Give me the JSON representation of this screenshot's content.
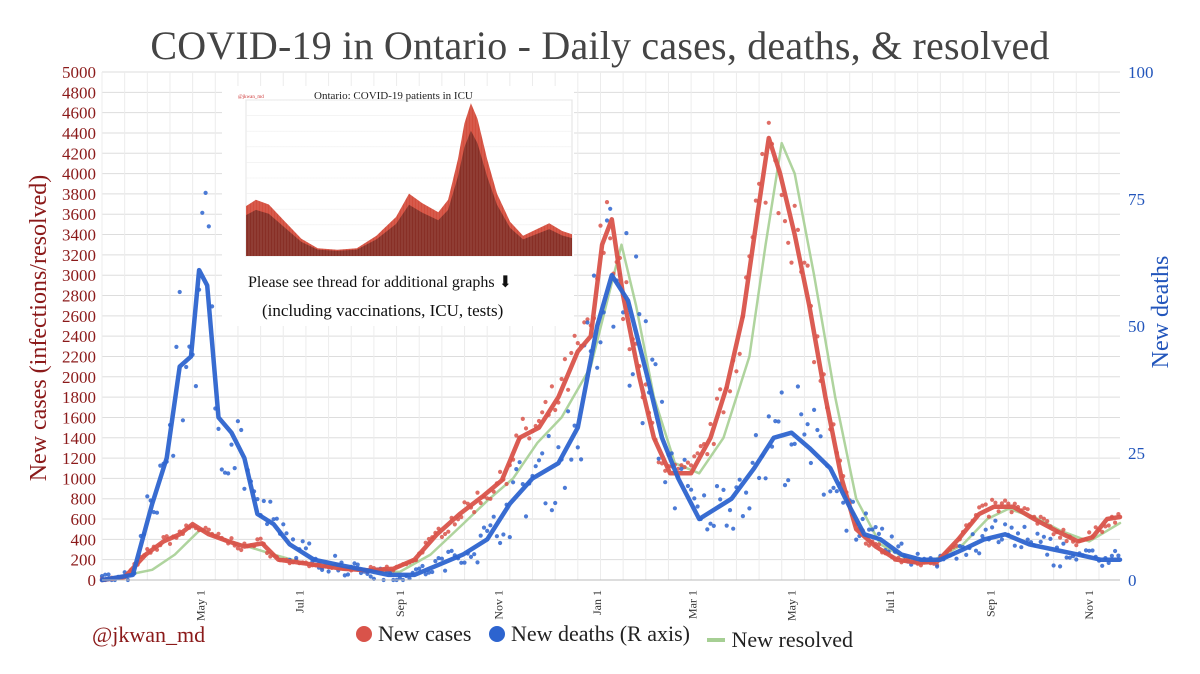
{
  "title": "COVID-19 in Ontario - Daily cases, deaths, & resolved",
  "handle": "@jkwan_md",
  "legend": {
    "cases": "New cases",
    "deaths": "New deaths (R axis)",
    "resolved": "New resolved"
  },
  "colors": {
    "cases": "#d9534a",
    "deaths": "#2d64cf",
    "resolved": "#a6cf94",
    "left_axis": "#8b1a1a",
    "right_axis": "#2255bb"
  },
  "inset": {
    "title": "Ontario: COVID-19 patients in ICU",
    "handle": "@jkwan_md",
    "note": "Please see thread for additional graphs ⬇",
    "note2": "(including vaccinations, ICU, tests)"
  },
  "chart_data": {
    "type": "line",
    "title": "COVID-19 in Ontario - Daily cases, deaths, & resolved",
    "ylabel_left": "New cases (infections/resolved)",
    "ylabel_right": "New deaths",
    "ylim_left": [
      0,
      5000
    ],
    "ylim_right": [
      0,
      100
    ],
    "yticks_left": [
      0,
      200,
      400,
      600,
      800,
      1000,
      1200,
      1400,
      1600,
      1800,
      2000,
      2200,
      2400,
      2600,
      2800,
      3000,
      3200,
      3400,
      3600,
      3800,
      4000,
      4200,
      4400,
      4600,
      4800,
      5000
    ],
    "yticks_right": [
      0,
      25,
      50,
      75,
      100
    ],
    "xlim": [
      "2020-03-01",
      "2021-11-20"
    ],
    "xticks": [
      {
        "date": "2020-05-01",
        "label": "May 1"
      },
      {
        "date": "2020-07-01",
        "label": "Jul 1"
      },
      {
        "date": "2020-09-01",
        "label": "Sep 1"
      },
      {
        "date": "2020-11-01",
        "label": "Nov 1"
      },
      {
        "date": "2021-01-01",
        "label": "Jan 1"
      },
      {
        "date": "2021-03-01",
        "label": "Mar 1"
      },
      {
        "date": "2021-05-01",
        "label": "May 1"
      },
      {
        "date": "2021-07-01",
        "label": "Jul 1"
      },
      {
        "date": "2021-09-01",
        "label": "Sep 1"
      },
      {
        "date": "2021-11-01",
        "label": "Nov 1"
      }
    ],
    "grid": true,
    "legend_position": "bottom",
    "series": [
      {
        "name": "New cases",
        "axis": "left",
        "style": "thick line with scattered daily dots",
        "points": [
          [
            "2020-03-01",
            0
          ],
          [
            "2020-03-15",
            30
          ],
          [
            "2020-03-28",
            250
          ],
          [
            "2020-04-08",
            380
          ],
          [
            "2020-04-18",
            450
          ],
          [
            "2020-04-26",
            550
          ],
          [
            "2020-05-06",
            450
          ],
          [
            "2020-05-18",
            380
          ],
          [
            "2020-05-28",
            330
          ],
          [
            "2020-06-08",
            360
          ],
          [
            "2020-06-18",
            200
          ],
          [
            "2020-07-01",
            170
          ],
          [
            "2020-07-15",
            140
          ],
          [
            "2020-07-28",
            110
          ],
          [
            "2020-08-12",
            95
          ],
          [
            "2020-08-28",
            110
          ],
          [
            "2020-09-10",
            200
          ],
          [
            "2020-09-24",
            450
          ],
          [
            "2020-10-08",
            650
          ],
          [
            "2020-10-22",
            820
          ],
          [
            "2020-11-03",
            980
          ],
          [
            "2020-11-14",
            1400
          ],
          [
            "2020-11-26",
            1500
          ],
          [
            "2020-12-08",
            1800
          ],
          [
            "2020-12-20",
            2250
          ],
          [
            "2020-12-28",
            2400
          ],
          [
            "2021-01-04",
            3300
          ],
          [
            "2021-01-10",
            3550
          ],
          [
            "2021-01-17",
            2800
          ],
          [
            "2021-01-27",
            2000
          ],
          [
            "2021-02-05",
            1400
          ],
          [
            "2021-02-15",
            1050
          ],
          [
            "2021-02-28",
            1050
          ],
          [
            "2021-03-12",
            1400
          ],
          [
            "2021-03-22",
            1900
          ],
          [
            "2021-04-01",
            2600
          ],
          [
            "2021-04-10",
            3600
          ],
          [
            "2021-04-17",
            4350
          ],
          [
            "2021-04-24",
            4000
          ],
          [
            "2021-05-03",
            3400
          ],
          [
            "2021-05-12",
            2700
          ],
          [
            "2021-05-22",
            1800
          ],
          [
            "2021-06-01",
            1000
          ],
          [
            "2021-06-10",
            500
          ],
          [
            "2021-06-22",
            330
          ],
          [
            "2021-07-05",
            200
          ],
          [
            "2021-07-18",
            170
          ],
          [
            "2021-07-30",
            180
          ],
          [
            "2021-08-12",
            400
          ],
          [
            "2021-08-25",
            650
          ],
          [
            "2021-09-03",
            720
          ],
          [
            "2021-09-15",
            720
          ],
          [
            "2021-09-28",
            600
          ],
          [
            "2021-10-12",
            480
          ],
          [
            "2021-10-25",
            380
          ],
          [
            "2021-11-03",
            420
          ],
          [
            "2021-11-12",
            600
          ],
          [
            "2021-11-20",
            620
          ]
        ]
      },
      {
        "name": "New deaths (R axis)",
        "axis": "right",
        "style": "thick line with scattered daily dots",
        "points": [
          [
            "2020-03-01",
            0
          ],
          [
            "2020-03-20",
            1
          ],
          [
            "2020-04-01",
            15
          ],
          [
            "2020-04-10",
            24
          ],
          [
            "2020-04-18",
            42
          ],
          [
            "2020-04-25",
            44
          ],
          [
            "2020-04-30",
            61
          ],
          [
            "2020-05-05",
            58
          ],
          [
            "2020-05-12",
            32
          ],
          [
            "2020-05-20",
            29
          ],
          [
            "2020-05-28",
            24
          ],
          [
            "2020-06-05",
            13
          ],
          [
            "2020-06-15",
            11
          ],
          [
            "2020-06-25",
            7
          ],
          [
            "2020-07-10",
            4
          ],
          [
            "2020-07-25",
            3
          ],
          [
            "2020-08-10",
            2
          ],
          [
            "2020-08-25",
            1
          ],
          [
            "2020-09-10",
            1
          ],
          [
            "2020-09-25",
            3
          ],
          [
            "2020-10-10",
            5
          ],
          [
            "2020-10-25",
            8
          ],
          [
            "2020-11-08",
            15
          ],
          [
            "2020-11-22",
            20
          ],
          [
            "2020-12-08",
            23
          ],
          [
            "2020-12-20",
            30
          ],
          [
            "2021-01-01",
            50
          ],
          [
            "2021-01-10",
            60
          ],
          [
            "2021-01-20",
            55
          ],
          [
            "2021-02-01",
            40
          ],
          [
            "2021-02-10",
            28
          ],
          [
            "2021-02-20",
            20
          ],
          [
            "2021-03-05",
            12
          ],
          [
            "2021-03-15",
            14
          ],
          [
            "2021-03-25",
            16
          ],
          [
            "2021-04-08",
            22
          ],
          [
            "2021-04-20",
            28
          ],
          [
            "2021-05-01",
            29
          ],
          [
            "2021-05-12",
            26
          ],
          [
            "2021-05-25",
            22
          ],
          [
            "2021-06-05",
            15
          ],
          [
            "2021-06-15",
            9
          ],
          [
            "2021-06-25",
            8
          ],
          [
            "2021-07-08",
            5
          ],
          [
            "2021-07-20",
            4
          ],
          [
            "2021-08-01",
            4
          ],
          [
            "2021-08-15",
            6
          ],
          [
            "2021-08-28",
            8
          ],
          [
            "2021-09-10",
            9
          ],
          [
            "2021-09-25",
            7
          ],
          [
            "2021-10-10",
            6
          ],
          [
            "2021-10-25",
            5
          ],
          [
            "2021-11-08",
            4
          ],
          [
            "2021-11-20",
            4
          ]
        ]
      },
      {
        "name": "New resolved",
        "axis": "left",
        "style": "thin line",
        "points": [
          [
            "2020-03-01",
            0
          ],
          [
            "2020-04-01",
            100
          ],
          [
            "2020-04-15",
            250
          ],
          [
            "2020-05-01",
            500
          ],
          [
            "2020-05-15",
            400
          ],
          [
            "2020-06-01",
            320
          ],
          [
            "2020-06-15",
            250
          ],
          [
            "2020-07-01",
            180
          ],
          [
            "2020-07-20",
            130
          ],
          [
            "2020-08-10",
            90
          ],
          [
            "2020-09-01",
            80
          ],
          [
            "2020-09-20",
            250
          ],
          [
            "2020-10-10",
            550
          ],
          [
            "2020-10-25",
            780
          ],
          [
            "2020-11-10",
            1000
          ],
          [
            "2020-11-25",
            1350
          ],
          [
            "2020-12-10",
            1600
          ],
          [
            "2020-12-28",
            2100
          ],
          [
            "2021-01-08",
            2800
          ],
          [
            "2021-01-16",
            3300
          ],
          [
            "2021-01-25",
            2700
          ],
          [
            "2021-02-05",
            1800
          ],
          [
            "2021-02-18",
            1150
          ],
          [
            "2021-03-05",
            1050
          ],
          [
            "2021-03-20",
            1400
          ],
          [
            "2021-04-05",
            2200
          ],
          [
            "2021-04-15",
            3300
          ],
          [
            "2021-04-25",
            4300
          ],
          [
            "2021-05-03",
            4000
          ],
          [
            "2021-05-15",
            3000
          ],
          [
            "2021-05-28",
            1800
          ],
          [
            "2021-06-10",
            800
          ],
          [
            "2021-06-25",
            350
          ],
          [
            "2021-07-10",
            220
          ],
          [
            "2021-07-25",
            170
          ],
          [
            "2021-08-15",
            350
          ],
          [
            "2021-08-30",
            600
          ],
          [
            "2021-09-12",
            700
          ],
          [
            "2021-09-28",
            620
          ],
          [
            "2021-10-15",
            480
          ],
          [
            "2021-11-01",
            380
          ],
          [
            "2021-11-20",
            560
          ]
        ]
      }
    ]
  }
}
